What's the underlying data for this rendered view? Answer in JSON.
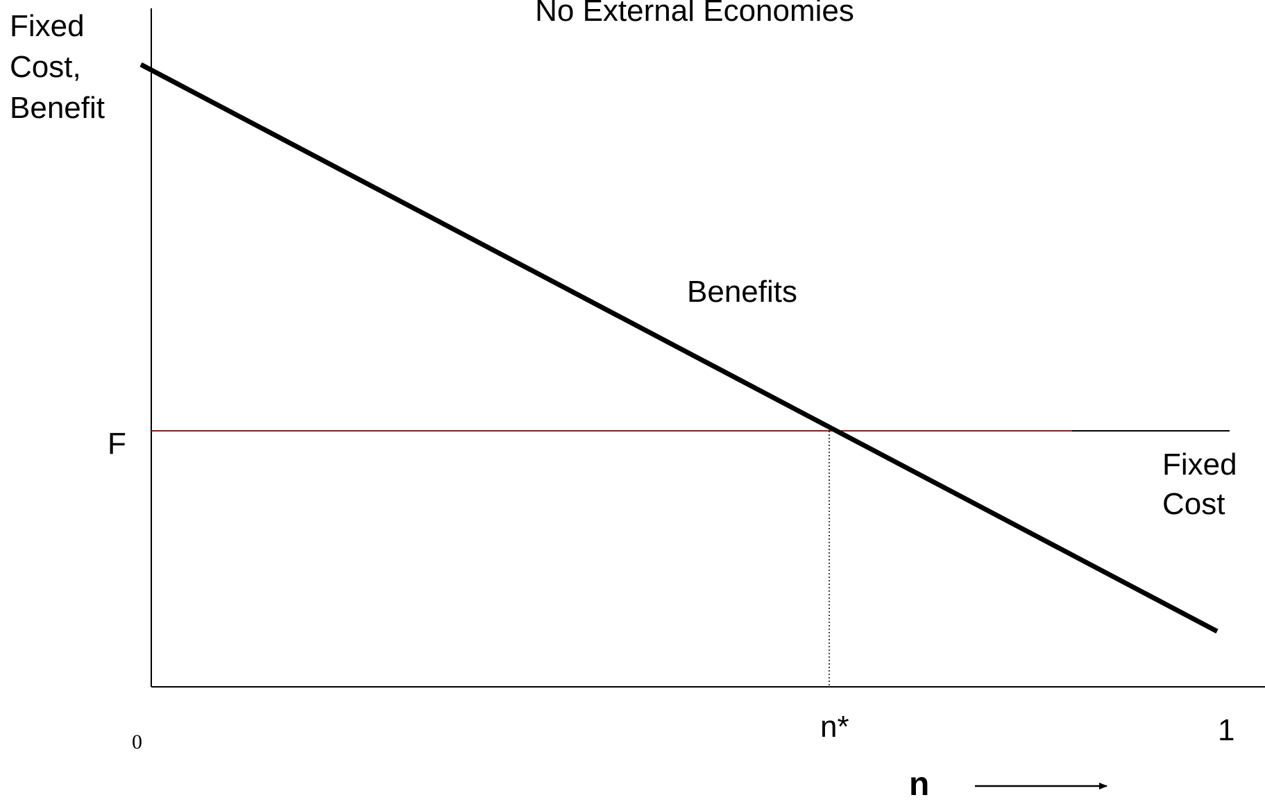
{
  "title": "No External Economies",
  "y_axis_label_lines": [
    "Fixed",
    "Cost,",
    "Benefit"
  ],
  "x_axis_label": "n",
  "labels": {
    "origin": "0",
    "x_end": "1",
    "n_star": "n*",
    "F": "F",
    "benefits": "Benefits",
    "fixed_cost_lines": [
      "Fixed",
      "Cost"
    ]
  },
  "colors": {
    "benefit_line": "#000000",
    "fixed_cost_line": "#8b1a1a",
    "axis": "#000000"
  }
}
